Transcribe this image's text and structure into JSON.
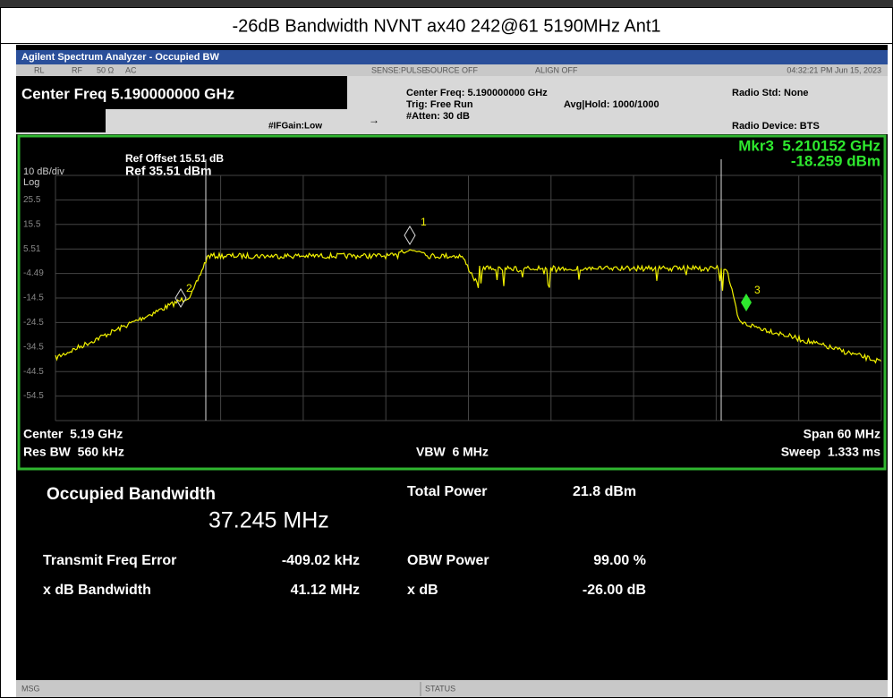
{
  "header": {
    "title": "-26dB Bandwidth NVNT ax40 242@61 5190MHz Ant1"
  },
  "analyzer": {
    "title": "Agilent Spectrum Analyzer - Occupied BW",
    "status_row": [
      "RL",
      "RF",
      "50 Ω",
      "AC",
      "SENSE:PULSE",
      "SOURCE OFF",
      "ALIGN OFF",
      "04:32:21 PM Jun 15, 2023"
    ],
    "center_freq": "Center Freq 5.190000000 GHz",
    "if_gain": "#IFGain:Low",
    "settings": [
      "Center Freq: 5.190000000 GHz",
      "Trig: Free Run",
      "#Atten: 30 dB"
    ],
    "avg_hold": "Avg|Hold: 1000/1000",
    "radio_std": "Radio Std: None",
    "radio_device": "Radio Device: BTS"
  },
  "plot": {
    "ref_offset": "Ref Offset 15.51 dB",
    "ref_level": "Ref 35.51 dBm",
    "scale": "10 dB/div",
    "scale_type": "Log",
    "y_labels": [
      "25.5",
      "15.5",
      "5.51",
      "-4.49",
      "-14.5",
      "-24.5",
      "-34.5",
      "-44.5",
      "-54.5"
    ],
    "marker_readout": [
      "Mkr3  5.210152 GHz",
      "-18.259 dBm"
    ],
    "markers": [
      "1",
      "2",
      "3"
    ],
    "center": "Center  5.19 GHz",
    "res_bw": "Res BW  560 kHz",
    "vbw": "VBW  6 MHz",
    "span": "Span 60 MHz",
    "sweep": "Sweep  1.333 ms"
  },
  "results": {
    "title": "Occupied Bandwidth",
    "occupied_bw": "37.245 MHz",
    "rows": [
      [
        "Transmit Freq Error",
        "-409.02 kHz"
      ],
      [
        "x dB Bandwidth",
        "41.12 MHz"
      ]
    ],
    "right_rows": [
      [
        "Total Power",
        "21.8 dBm"
      ],
      [
        "OBW Power",
        "99.00 %"
      ],
      [
        "x dB",
        "-26.00 dB"
      ]
    ]
  },
  "status_bar": {
    "msg": "MSG",
    "status": "STATUS"
  }
}
